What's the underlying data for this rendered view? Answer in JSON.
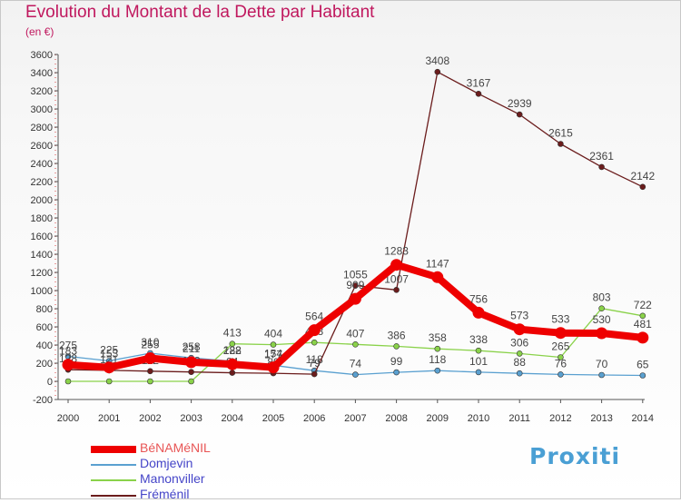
{
  "chart_data": {
    "type": "line",
    "title": "Evolution du Montant de la Dette par Habitant",
    "subtitle": "(en €)",
    "xlabel": "",
    "ylabel": "",
    "categories": [
      "2000",
      "2001",
      "2002",
      "2003",
      "2004",
      "2005",
      "2006",
      "2007",
      "2008",
      "2009",
      "2010",
      "2011",
      "2012",
      "2013",
      "2014"
    ],
    "ylim": [
      -200,
      3600
    ],
    "yticks": [
      -200,
      0,
      200,
      400,
      600,
      800,
      1000,
      1200,
      1400,
      1600,
      1800,
      2000,
      2200,
      2400,
      2600,
      2800,
      3000,
      3200,
      3400,
      3600
    ],
    "grid": false,
    "legend_position": "bottom-left",
    "series": [
      {
        "name": "BéNAMéNIL",
        "color": "#ee0000",
        "highlight": true,
        "values": [
          183,
          153,
          255,
          211,
          188,
          154,
          564,
          909,
          1283,
          1147,
          756,
          573,
          533,
          530,
          481
        ],
        "labels": [
          "183",
          "153",
          "255",
          "211",
          "188",
          "154",
          "564",
          "909",
          "1283",
          "1147",
          "756",
          "573",
          "533",
          "530",
          "481"
        ]
      },
      {
        "name": "Domjevin",
        "color": "#5aa0d0",
        "values": [
          275,
          225,
          310,
          258,
          222,
          177,
          118,
          74,
          99,
          118,
          101,
          88,
          76,
          70,
          65
        ],
        "labels": [
          "275",
          "225",
          "310",
          "258",
          "222",
          "177",
          "118",
          "74",
          "99",
          "118",
          "101",
          "88",
          "76",
          "70",
          "65"
        ]
      },
      {
        "name": "Manonviller",
        "color": "#8ad24a",
        "values": [
          0,
          0,
          0,
          0,
          413,
          404,
          428,
          407,
          386,
          358,
          338,
          306,
          265,
          803,
          722
        ],
        "labels": [
          "",
          "",
          "",
          "",
          "413",
          "404",
          "428",
          "407",
          "386",
          "358",
          "338",
          "306",
          "265",
          "803",
          "722"
        ]
      },
      {
        "name": "Fréménil",
        "color": "#6b1c1c",
        "values": [
          128,
          121,
          112,
          103,
          94,
          89,
          79,
          1055,
          1007,
          3408,
          3167,
          2939,
          2615,
          2361,
          2142
        ],
        "labels": [
          "128",
          "121",
          "112",
          "103",
          "94",
          "89",
          "79",
          "1055",
          "1007",
          "3408",
          "3167",
          "2939",
          "2615",
          "2361",
          "2142"
        ]
      }
    ]
  },
  "brand": {
    "text": "Proxiti"
  }
}
